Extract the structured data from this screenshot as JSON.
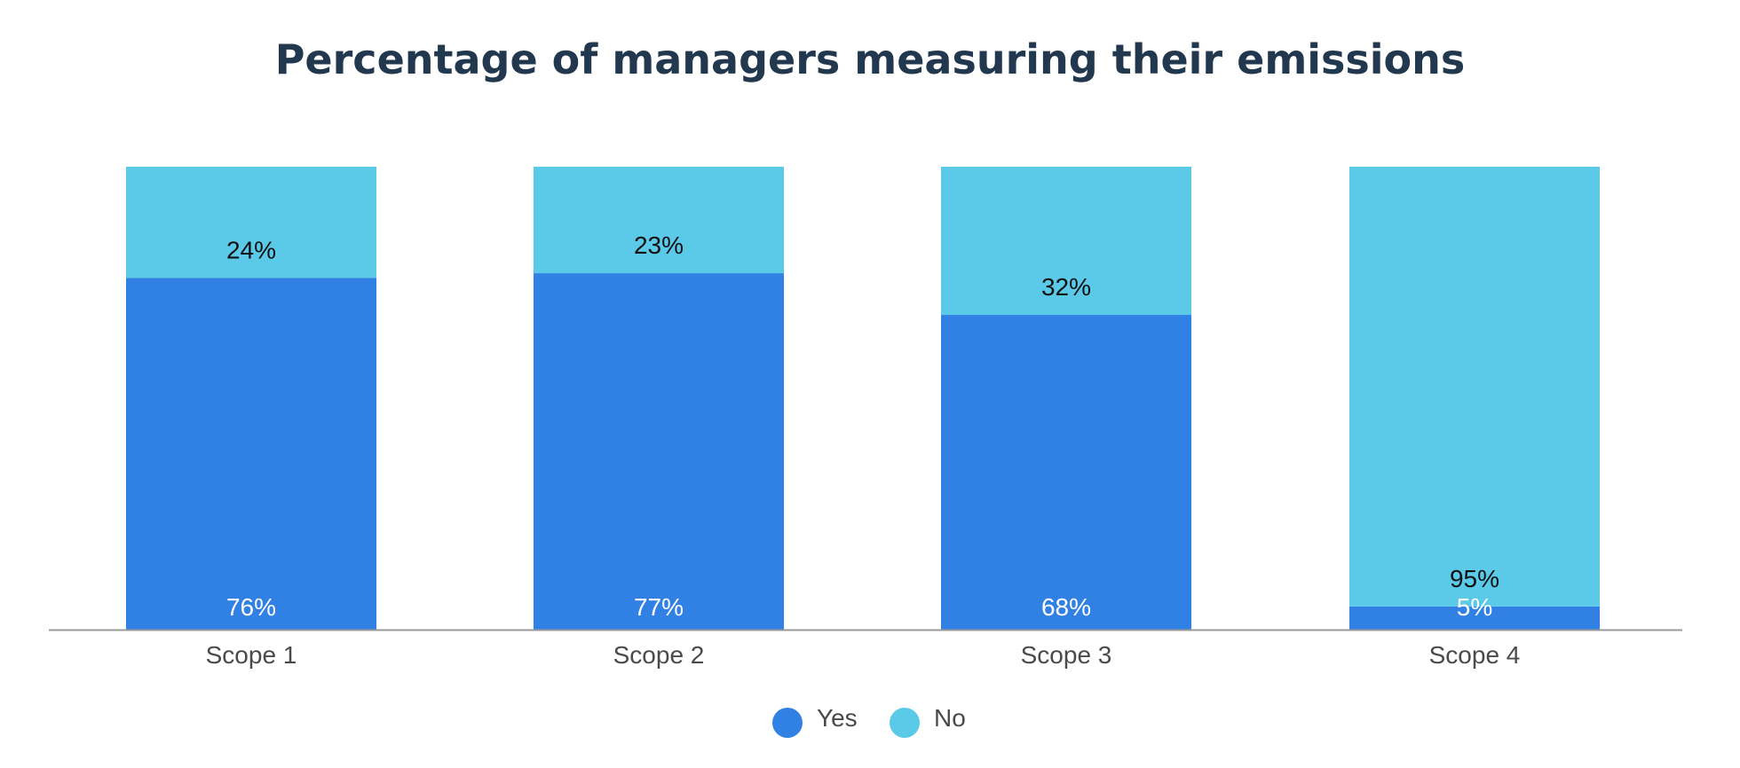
{
  "chart_data": {
    "type": "bar",
    "stacked": true,
    "title": "Percentage of managers measuring their emissions",
    "xlabel": "",
    "ylabel": "",
    "ylim": [
      0,
      100
    ],
    "grid": false,
    "legend_position": "bottom-center",
    "categories": [
      "Scope 1",
      "Scope 2",
      "Scope 3",
      "Scope 4"
    ],
    "series": [
      {
        "name": "Yes",
        "color": "#3081e3",
        "label_color": "#ffffff",
        "values": [
          76,
          77,
          68,
          5
        ],
        "labels": [
          "76%",
          "77%",
          "68%",
          "5%"
        ]
      },
      {
        "name": "No",
        "color": "#5bc9e8",
        "label_color": "#111111",
        "values": [
          24,
          23,
          32,
          95
        ],
        "labels": [
          "24%",
          "23%",
          "32%",
          "95%"
        ]
      }
    ]
  }
}
